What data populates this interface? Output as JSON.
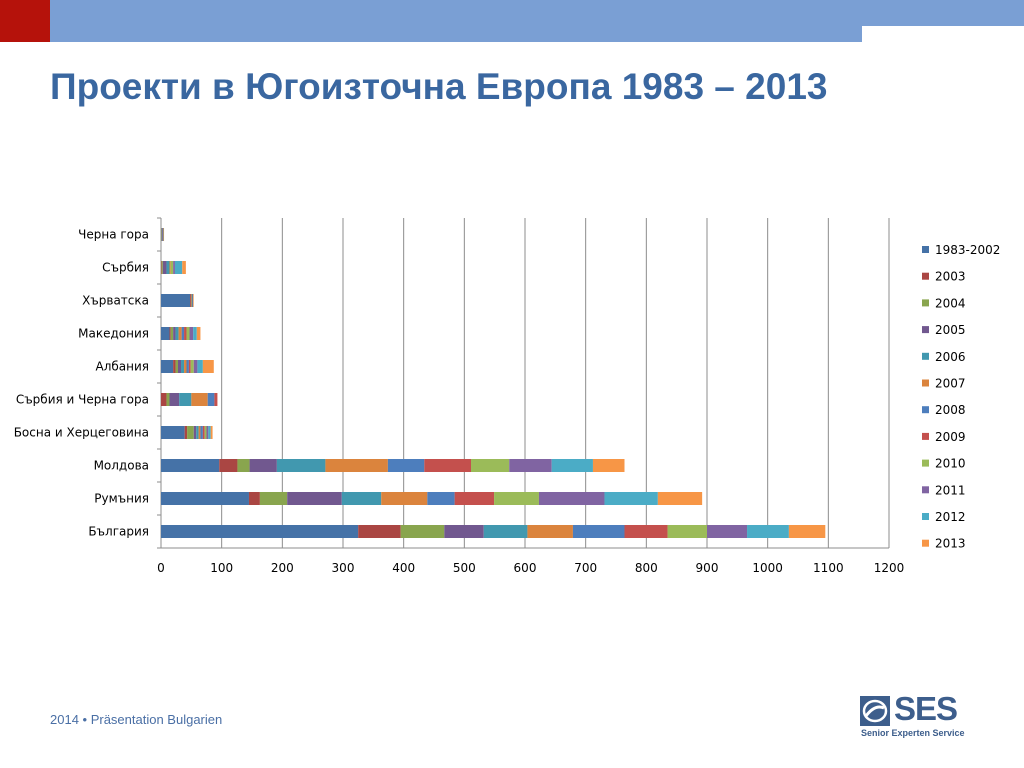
{
  "slide": {
    "title": "Проекти в Югоизточна Европа 1983 – 2013",
    "footer": "2014 • Präsentation Bulgarien",
    "logo": {
      "text": "SES",
      "subtitle": "Senior Experten Service"
    },
    "colors": {
      "top_bar": "#7a9fd4",
      "accent_block": "#b5120b",
      "title": "#3a67a0",
      "logo": "#3d5e8c"
    }
  },
  "chart_data": {
    "type": "bar",
    "orientation": "horizontal",
    "stacked": true,
    "categories": [
      "България",
      "Румъния",
      "Молдова",
      "Босна и Херцеговина",
      "Сърбия и Черна гора",
      "Албания",
      "Македония",
      "Хърватска",
      "Сърбия",
      "Черна гора"
    ],
    "xlim": [
      0,
      1200
    ],
    "xticks": [
      0,
      100,
      200,
      300,
      400,
      500,
      600,
      700,
      800,
      900,
      1000,
      1100,
      1200
    ],
    "grid": true,
    "legend_position": "right",
    "series": [
      {
        "name": "1983-2002",
        "color": "#4572a7",
        "values": [
          325,
          145,
          96,
          39,
          0,
          20,
          14,
          48,
          0,
          0
        ]
      },
      {
        "name": "2003",
        "color": "#aa4643",
        "values": [
          70,
          18,
          30,
          4,
          9,
          4,
          2,
          2,
          1,
          0
        ]
      },
      {
        "name": "2004",
        "color": "#89a54e",
        "values": [
          72,
          45,
          20,
          11,
          5,
          4,
          4,
          1,
          2,
          1
        ]
      },
      {
        "name": "2005",
        "color": "#71588f",
        "values": [
          65,
          90,
          45,
          4,
          16,
          5,
          4,
          1,
          6,
          2
        ]
      },
      {
        "name": "2006",
        "color": "#4198af",
        "values": [
          72,
          65,
          80,
          4,
          20,
          5,
          5,
          1,
          5,
          1
        ]
      },
      {
        "name": "2007",
        "color": "#db843d",
        "values": [
          75,
          76,
          103,
          3,
          27,
          4,
          5,
          0,
          2,
          1
        ]
      },
      {
        "name": "2008",
        "color": "#4d7ebd",
        "values": [
          85,
          45,
          60,
          4,
          11,
          4,
          4,
          0,
          0,
          0
        ]
      },
      {
        "name": "2009",
        "color": "#c4504d",
        "values": [
          71,
          65,
          77,
          3,
          5,
          3,
          4,
          0,
          0,
          0
        ]
      },
      {
        "name": "2010",
        "color": "#9bbb59",
        "values": [
          65,
          74,
          63,
          3,
          0,
          5,
          5,
          0,
          4,
          0
        ]
      },
      {
        "name": "2011",
        "color": "#8064a2",
        "values": [
          66,
          108,
          70,
          3,
          0,
          6,
          6,
          0,
          3,
          0
        ]
      },
      {
        "name": "2012",
        "color": "#4bacc6",
        "values": [
          69,
          88,
          68,
          4,
          0,
          9,
          6,
          0,
          12,
          0
        ]
      },
      {
        "name": "2013",
        "color": "#f79646",
        "values": [
          60,
          73,
          52,
          3,
          0,
          18,
          6,
          1,
          6,
          0
        ]
      }
    ]
  }
}
